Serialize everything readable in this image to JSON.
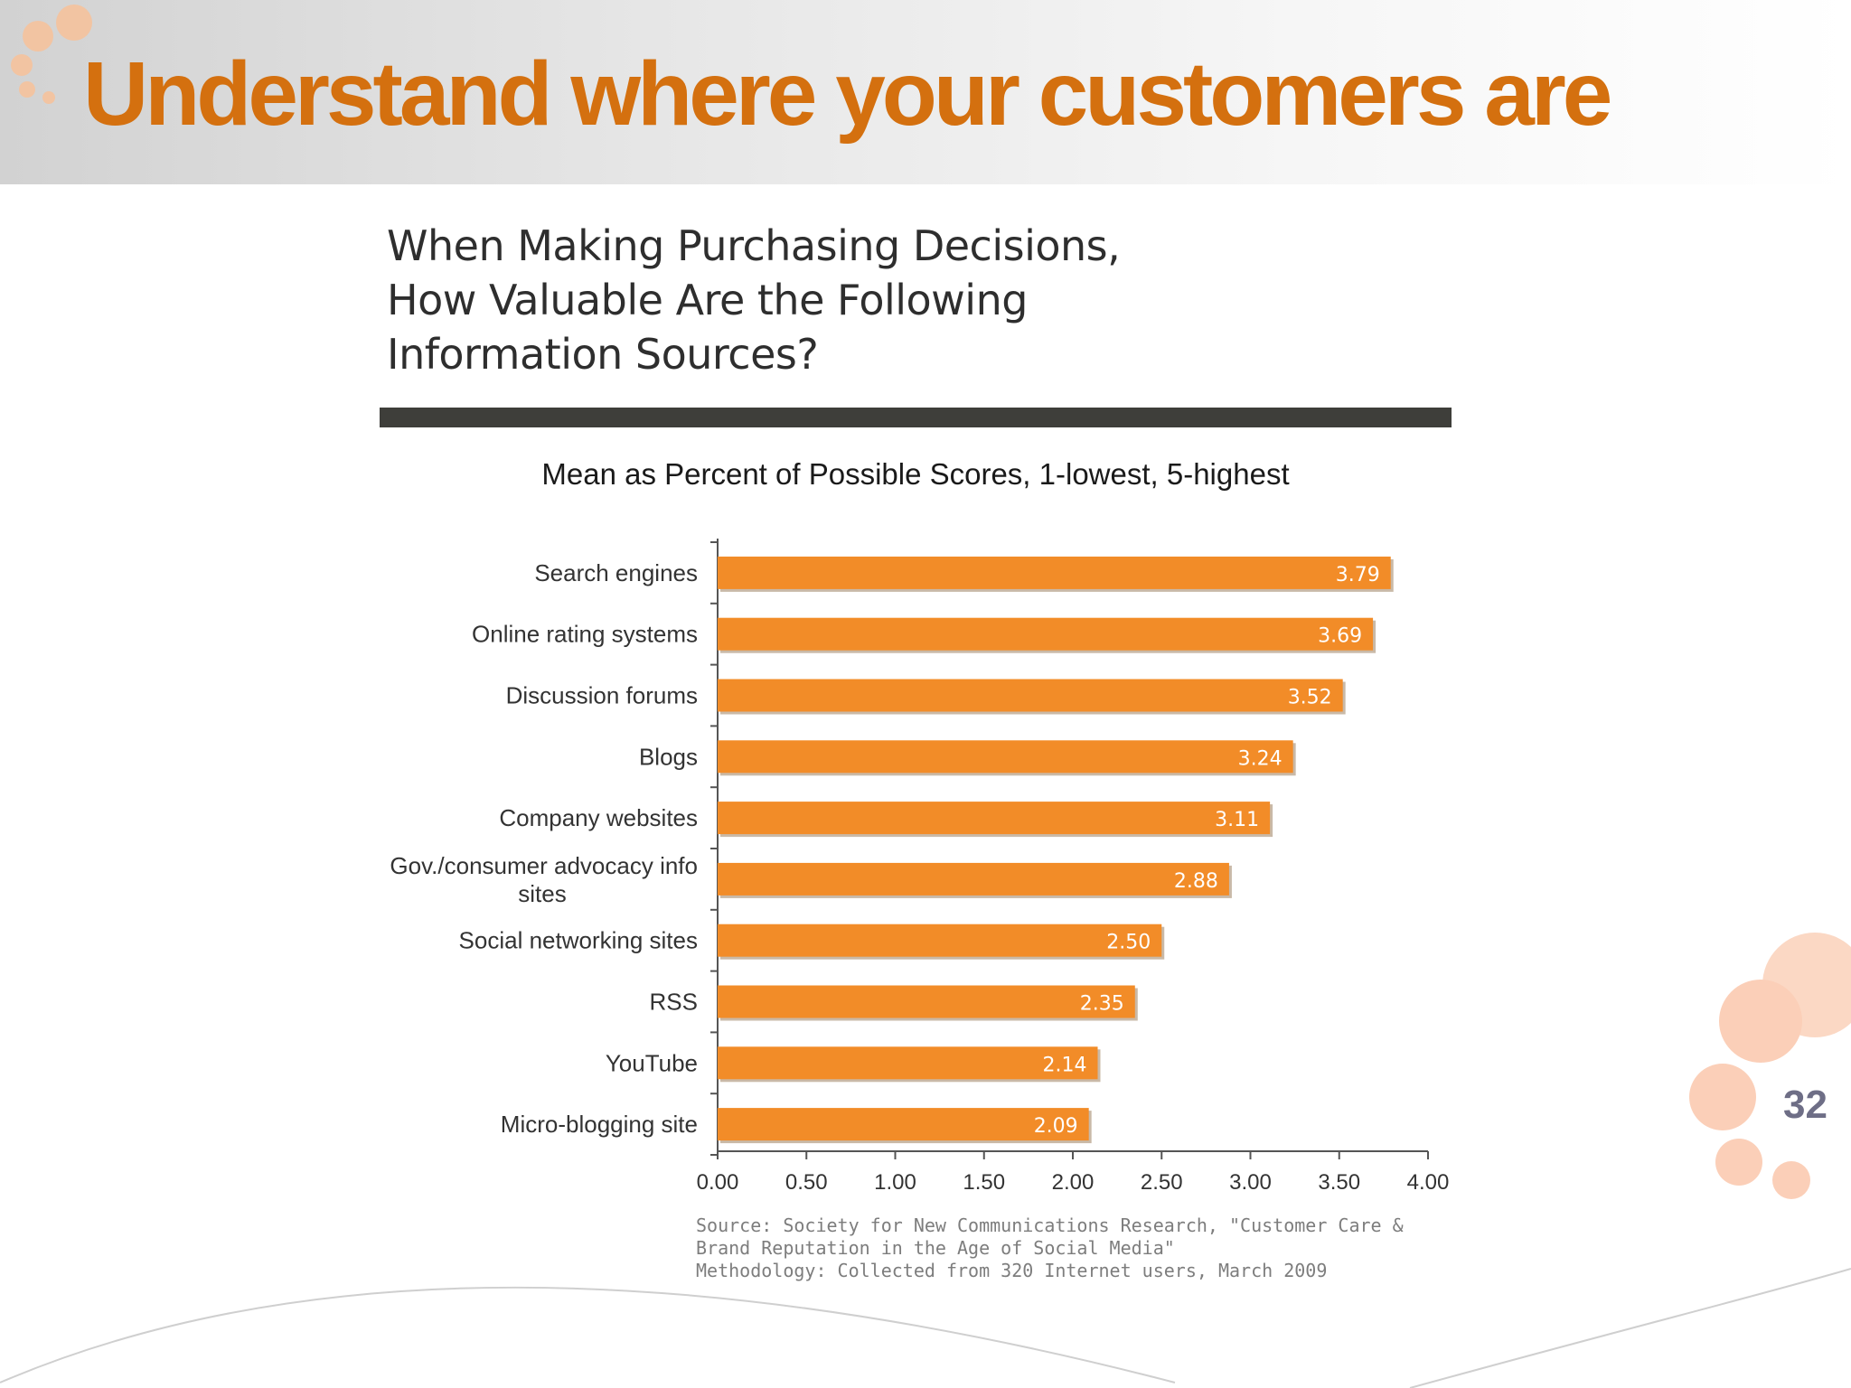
{
  "slide": {
    "title": "Understand where your customers are",
    "page_number": "32",
    "accent_color": "#d4700f",
    "decoration": "orange-circles"
  },
  "figure": {
    "title": "When Making Purchasing Decisions,\nHow Valuable Are the Following\nInformation Sources?",
    "source": "Source: Society for New Communications Research, \"Customer Care &\nBrand Reputation in the Age of Social Media\"\nMethodology: Collected from  320 Internet users, March 2009"
  },
  "chart_data": {
    "type": "bar",
    "orientation": "horizontal",
    "title": "Mean as Percent of Possible Scores, 1-lowest, 5-highest",
    "categories": [
      "Search engines",
      "Online rating systems",
      "Discussion forums",
      "Blogs",
      "Company websites",
      "Gov./consumer advocacy info sites",
      "Social networking sites",
      "RSS",
      "YouTube",
      "Micro-blogging site"
    ],
    "values": [
      3.79,
      3.69,
      3.52,
      3.24,
      3.11,
      2.88,
      2.5,
      2.35,
      2.14,
      2.09
    ],
    "data_labels": [
      "3.79",
      "3.69",
      "3.52",
      "3.24",
      "3.11",
      "2.88",
      "2.50",
      "2.35",
      "2.14",
      "2.09"
    ],
    "x_ticks": [
      0,
      0.5,
      1,
      1.5,
      2,
      2.5,
      3,
      3.5,
      4
    ],
    "x_tick_labels": [
      "0.00",
      "0.50",
      "1.00",
      "1.50",
      "2.00",
      "2.50",
      "3.00",
      "3.50",
      "4.00"
    ],
    "xlim": [
      0,
      4
    ],
    "xlabel": "",
    "ylabel": "",
    "grid": false,
    "bar_color": "#f28c28"
  }
}
